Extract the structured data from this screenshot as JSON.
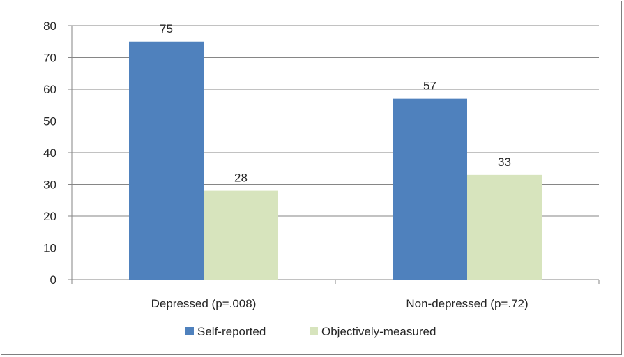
{
  "chart_data": {
    "type": "bar",
    "categories": [
      "Depressed (p=.008)",
      "Non-depressed (p=.72)"
    ],
    "series": [
      {
        "name": "Self-reported",
        "values": [
          75,
          57
        ],
        "color": "#4f81bd"
      },
      {
        "name": "Objectively-measured",
        "values": [
          28,
          33
        ],
        "color": "#d7e4bd"
      }
    ],
    "ylim": [
      0,
      80
    ],
    "yticks": [
      0,
      10,
      20,
      30,
      40,
      50,
      60,
      70,
      80
    ],
    "grid": true,
    "legend_position": "bottom",
    "title": "",
    "xlabel": "",
    "ylabel": ""
  }
}
